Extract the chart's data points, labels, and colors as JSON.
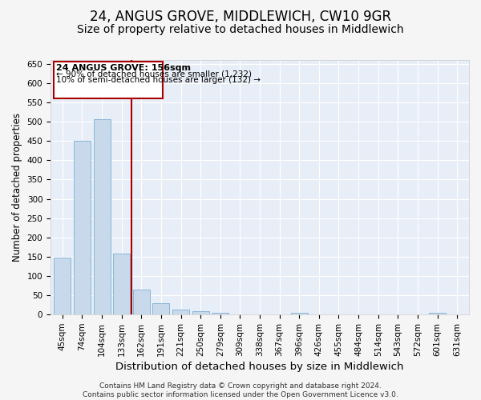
{
  "title": "24, ANGUS GROVE, MIDDLEWICH, CW10 9GR",
  "subtitle": "Size of property relative to detached houses in Middlewich",
  "xlabel": "Distribution of detached houses by size in Middlewich",
  "ylabel": "Number of detached properties",
  "categories": [
    "45sqm",
    "74sqm",
    "104sqm",
    "133sqm",
    "162sqm",
    "191sqm",
    "221sqm",
    "250sqm",
    "279sqm",
    "309sqm",
    "338sqm",
    "367sqm",
    "396sqm",
    "426sqm",
    "455sqm",
    "484sqm",
    "514sqm",
    "543sqm",
    "572sqm",
    "601sqm",
    "631sqm"
  ],
  "values": [
    147,
    450,
    507,
    158,
    65,
    30,
    13,
    8,
    5,
    0,
    0,
    0,
    5,
    0,
    0,
    0,
    0,
    0,
    0,
    5,
    0
  ],
  "bar_color": "#c9d9ec",
  "bar_edge_color": "#7aafd4",
  "vline_x": 3.5,
  "vline_color": "#aa0000",
  "annotation_line1": "24 ANGUS GROVE: 156sqm",
  "annotation_line2": "← 90% of detached houses are smaller (1,232)",
  "annotation_line3": "10% of semi-detached houses are larger (132) →",
  "ylim": [
    0,
    660
  ],
  "yticks": [
    0,
    50,
    100,
    150,
    200,
    250,
    300,
    350,
    400,
    450,
    500,
    550,
    600,
    650
  ],
  "background_color": "#e8eef7",
  "grid_color": "#ffffff",
  "footer_text": "Contains HM Land Registry data © Crown copyright and database right 2024.\nContains public sector information licensed under the Open Government Licence v3.0.",
  "title_fontsize": 12,
  "subtitle_fontsize": 10,
  "xlabel_fontsize": 9.5,
  "ylabel_fontsize": 8.5,
  "tick_fontsize": 7.5,
  "ann_fontsize": 8,
  "footer_fontsize": 6.5
}
